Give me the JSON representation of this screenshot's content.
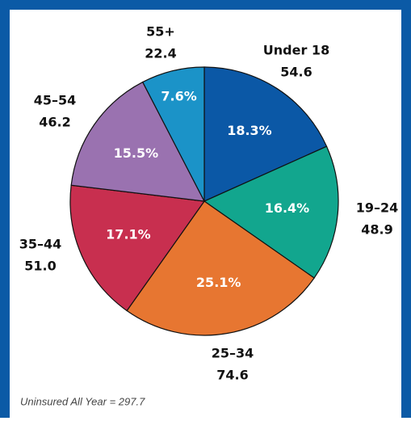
{
  "chart_data": {
    "type": "pie",
    "categories": [
      "Under 18",
      "19–24",
      "25–34",
      "35–44",
      "45–54",
      "55+"
    ],
    "values": [
      18.3,
      16.4,
      25.1,
      17.1,
      15.5,
      7.6
    ],
    "value_labels": [
      "18.3%",
      "16.4%",
      "25.1%",
      "17.1%",
      "15.5%",
      "7.6%"
    ],
    "counts": [
      54.6,
      48.9,
      74.6,
      51.0,
      46.2,
      22.4
    ],
    "count_labels": [
      "54.6",
      "48.9",
      "74.6",
      "51.0",
      "46.2",
      "22.4"
    ],
    "colors": [
      "#0b58a6",
      "#12a68e",
      "#e77631",
      "#c82f4f",
      "#9a72b0",
      "#1b93c8"
    ],
    "note": "Uninsured All Year = 297.7"
  }
}
